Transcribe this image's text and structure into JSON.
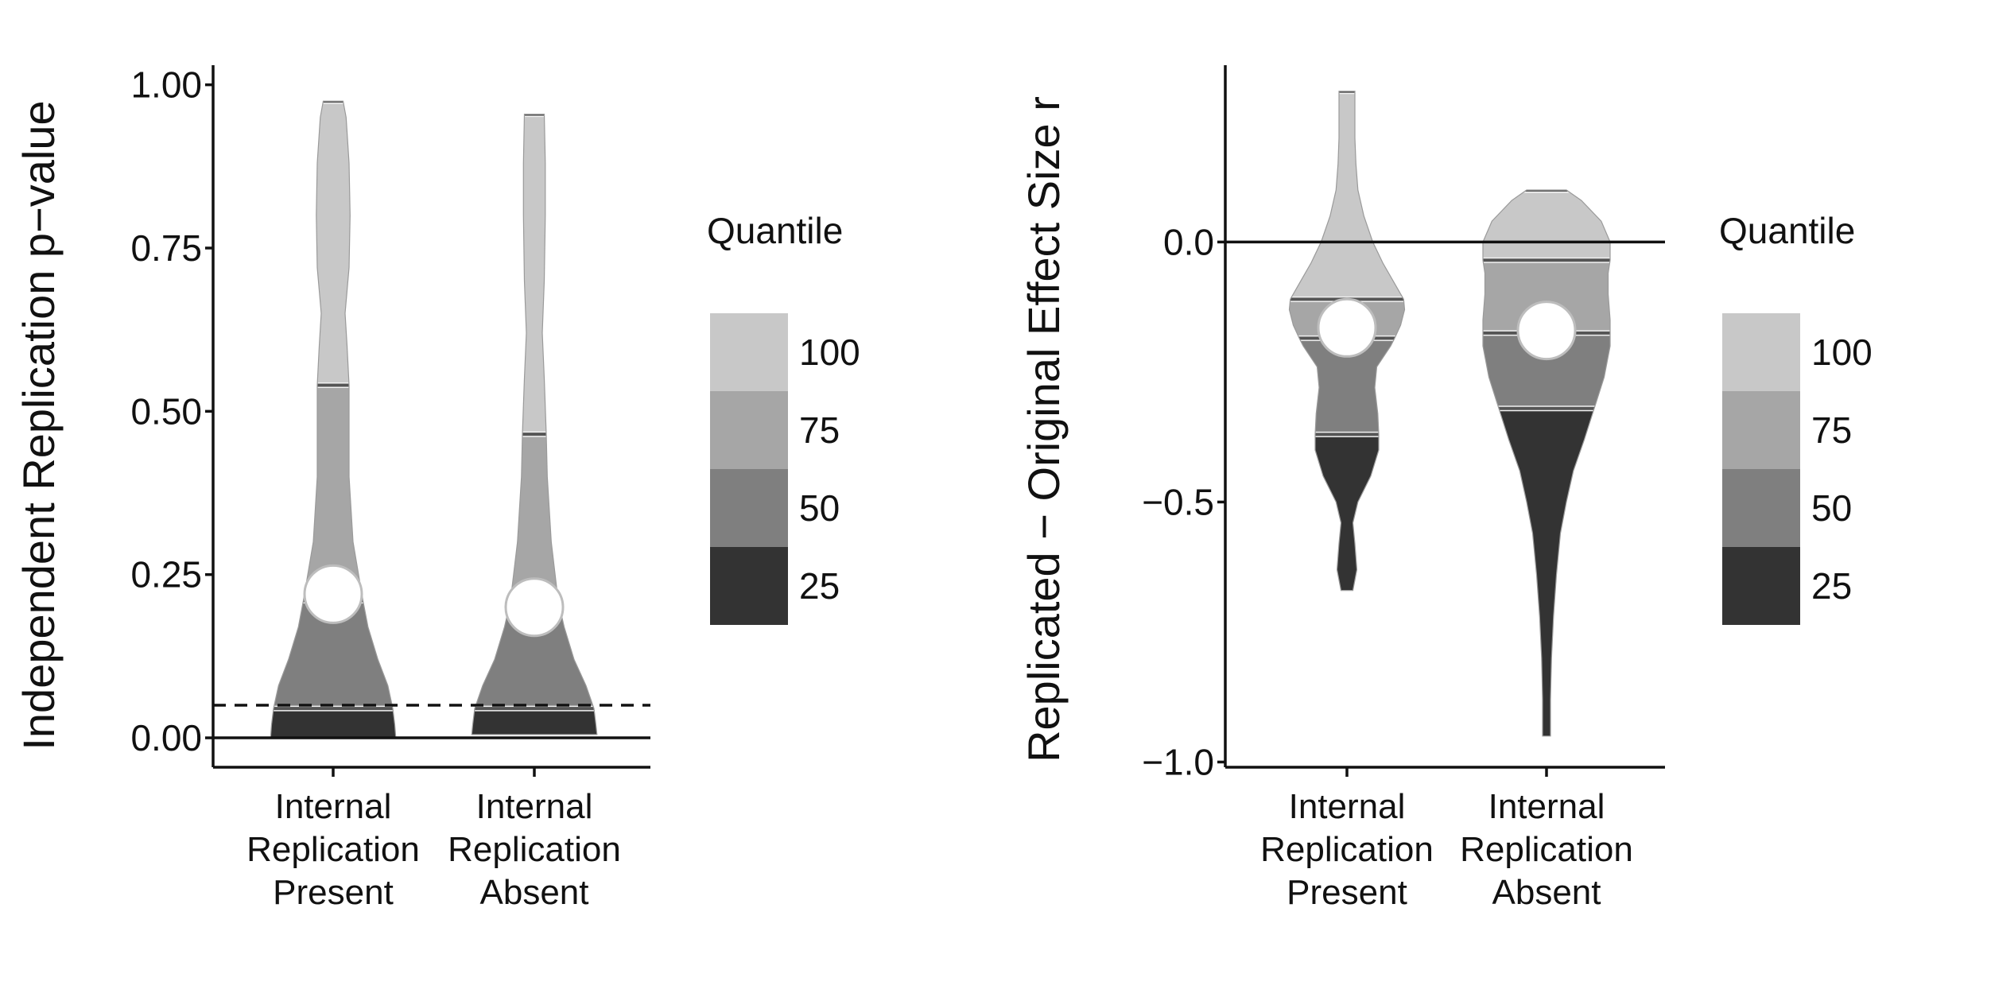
{
  "chart_data": [
    {
      "type": "violin",
      "title": "",
      "xlabel": "",
      "ylabel": "Independent Replication p−value",
      "ylim": [
        -0.045,
        1.03
      ],
      "yticks": [
        0.0,
        0.25,
        0.5,
        0.75,
        1.0
      ],
      "ytick_labels": [
        "0.00",
        "0.25",
        "0.50",
        "0.75",
        "1.00"
      ],
      "categories": [
        {
          "lines": [
            "Internal",
            "Replication",
            "Present"
          ]
        },
        {
          "lines": [
            "Internal",
            "Replication",
            "Absent"
          ]
        }
      ],
      "reference_lines": [
        {
          "y": 0.0,
          "style": "solid"
        },
        {
          "y": 0.05,
          "style": "dashed"
        }
      ],
      "series": [
        {
          "category_index": 0,
          "min": 0.0,
          "max": 0.975,
          "quantile_25": 0.045,
          "median": 0.21,
          "quantile_75": 0.54,
          "mean": 0.22,
          "density": [
            [
              0.0,
              0.63
            ],
            [
              0.02,
              0.62
            ],
            [
              0.045,
              0.6
            ],
            [
              0.08,
              0.55
            ],
            [
              0.12,
              0.45
            ],
            [
              0.17,
              0.35
            ],
            [
              0.21,
              0.3
            ],
            [
              0.3,
              0.2
            ],
            [
              0.4,
              0.16
            ],
            [
              0.54,
              0.16
            ],
            [
              0.6,
              0.14
            ],
            [
              0.65,
              0.12
            ],
            [
              0.72,
              0.16
            ],
            [
              0.8,
              0.17
            ],
            [
              0.88,
              0.16
            ],
            [
              0.95,
              0.13
            ],
            [
              0.975,
              0.1
            ]
          ]
        },
        {
          "category_index": 1,
          "min": 0.005,
          "max": 0.955,
          "quantile_25": 0.045,
          "median": 0.195,
          "quantile_75": 0.465,
          "mean": 0.2,
          "density": [
            [
              0.005,
              0.63
            ],
            [
              0.02,
              0.62
            ],
            [
              0.045,
              0.6
            ],
            [
              0.08,
              0.52
            ],
            [
              0.12,
              0.4
            ],
            [
              0.17,
              0.3
            ],
            [
              0.21,
              0.24
            ],
            [
              0.3,
              0.17
            ],
            [
              0.4,
              0.13
            ],
            [
              0.465,
              0.12
            ],
            [
              0.55,
              0.1
            ],
            [
              0.62,
              0.08
            ],
            [
              0.7,
              0.1
            ],
            [
              0.8,
              0.11
            ],
            [
              0.88,
              0.11
            ],
            [
              0.955,
              0.1
            ]
          ]
        }
      ]
    },
    {
      "type": "violin",
      "title": "",
      "xlabel": "",
      "ylabel": "Replicated − Original Effect Size r",
      "ylim": [
        -1.01,
        0.34
      ],
      "yticks": [
        -1.0,
        -0.5,
        0.0
      ],
      "ytick_labels": [
        "−1.0",
        "−0.5",
        "0.0"
      ],
      "categories": [
        {
          "lines": [
            "Internal",
            "Replication",
            "Present"
          ]
        },
        {
          "lines": [
            "Internal",
            "Replication",
            "Absent"
          ]
        }
      ],
      "reference_lines": [
        {
          "y": 0.0,
          "style": "solid"
        }
      ],
      "series": [
        {
          "category_index": 0,
          "min": -0.67,
          "max": 0.29,
          "quantile_25": -0.37,
          "median": -0.185,
          "quantile_75": -0.11,
          "mean": -0.165,
          "density": [
            [
              -0.67,
              0.06
            ],
            [
              -0.63,
              0.1
            ],
            [
              -0.58,
              0.08
            ],
            [
              -0.54,
              0.06
            ],
            [
              -0.5,
              0.11
            ],
            [
              -0.45,
              0.24
            ],
            [
              -0.4,
              0.32
            ],
            [
              -0.37,
              0.32
            ],
            [
              -0.33,
              0.31
            ],
            [
              -0.28,
              0.28
            ],
            [
              -0.24,
              0.3
            ],
            [
              -0.2,
              0.44
            ],
            [
              -0.185,
              0.48
            ],
            [
              -0.16,
              0.54
            ],
            [
              -0.13,
              0.58
            ],
            [
              -0.11,
              0.57
            ],
            [
              -0.08,
              0.48
            ],
            [
              -0.04,
              0.36
            ],
            [
              0.0,
              0.26
            ],
            [
              0.05,
              0.17
            ],
            [
              0.1,
              0.11
            ],
            [
              0.15,
              0.09
            ],
            [
              0.2,
              0.08
            ],
            [
              0.25,
              0.08
            ],
            [
              0.29,
              0.08
            ]
          ]
        },
        {
          "category_index": 1,
          "min": -0.95,
          "max": 0.1,
          "quantile_25": -0.32,
          "median": -0.175,
          "quantile_75": -0.035,
          "mean": -0.17,
          "density": [
            [
              -0.95,
              0.04
            ],
            [
              -0.88,
              0.04
            ],
            [
              -0.8,
              0.05
            ],
            [
              -0.72,
              0.07
            ],
            [
              -0.64,
              0.1
            ],
            [
              -0.56,
              0.14
            ],
            [
              -0.5,
              0.2
            ],
            [
              -0.44,
              0.27
            ],
            [
              -0.38,
              0.38
            ],
            [
              -0.32,
              0.48
            ],
            [
              -0.26,
              0.58
            ],
            [
              -0.2,
              0.64
            ],
            [
              -0.15,
              0.64
            ],
            [
              -0.1,
              0.62
            ],
            [
              -0.06,
              0.62
            ],
            [
              -0.035,
              0.64
            ],
            [
              0.0,
              0.64
            ],
            [
              0.04,
              0.55
            ],
            [
              0.08,
              0.35
            ],
            [
              0.1,
              0.2
            ]
          ]
        }
      ]
    }
  ],
  "legend": {
    "title": "Quantile",
    "items": [
      {
        "label": "100",
        "color": "#c8c8c8"
      },
      {
        "label": "75",
        "color": "#a6a6a6"
      },
      {
        "label": "50",
        "color": "#7f7f7f"
      },
      {
        "label": "25",
        "color": "#333333"
      }
    ]
  },
  "colors": {
    "q25": "#333333",
    "q50": "#7f7f7f",
    "q75": "#a6a6a6",
    "q100": "#c8c8c8",
    "quantile_line": "#555555",
    "mean_marker_fill": "#ffffff",
    "mean_marker_stroke": "#bdbdbd",
    "axis": "#111111"
  }
}
